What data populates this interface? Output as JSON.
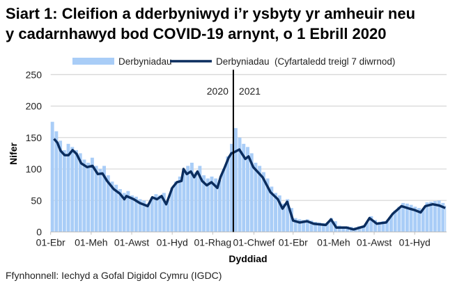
{
  "chart_data": {
    "type": "bar+line",
    "title": [
      "Siart 1: Cleifion a dderbyniwyd i’r ysbyty yr amheuir neu",
      "y cadarnhawyd bod COVID-19 arnynt, o 1 Ebrill 2020"
    ],
    "xlabel": "Dyddiad",
    "ylabel": "Nifer",
    "ylim": [
      0,
      250
    ],
    "yticks": [
      0,
      50,
      100,
      150,
      200,
      250
    ],
    "xlim": [
      "2020-04-01",
      "2021-11-18"
    ],
    "xticks": [
      {
        "date": "2020-04-01",
        "label": "01-Ebr"
      },
      {
        "date": "2020-06-01",
        "label": "01-Meh"
      },
      {
        "date": "2020-08-01",
        "label": "01-Awst"
      },
      {
        "date": "2020-10-01",
        "label": "01-Hyd"
      },
      {
        "date": "2020-12-01",
        "label": "01-Rhag"
      },
      {
        "date": "2021-02-01",
        "label": "01-Chwef"
      },
      {
        "date": "2021-04-01",
        "label": "01-Ebr"
      },
      {
        "date": "2021-06-01",
        "label": "01-Meh"
      },
      {
        "date": "2021-08-01",
        "label": "01-Awst"
      },
      {
        "date": "2021-10-01",
        "label": "01-Hyd"
      }
    ],
    "grid": "horizontal",
    "legend_position": "top",
    "year_divider": {
      "date": "2021-01-01",
      "left_label": "2020",
      "right_label": "2021"
    },
    "series": [
      {
        "name": "Derbyniadau",
        "type": "bar",
        "color": "#a9cdf7",
        "points": [
          [
            "2020-04-01",
            175
          ],
          [
            "2020-04-07",
            160
          ],
          [
            "2020-04-13",
            145
          ],
          [
            "2020-04-19",
            130
          ],
          [
            "2020-04-25",
            140
          ],
          [
            "2020-05-01",
            135
          ],
          [
            "2020-05-07",
            130
          ],
          [
            "2020-05-13",
            125
          ],
          [
            "2020-05-19",
            115
          ],
          [
            "2020-05-25",
            110
          ],
          [
            "2020-05-31",
            118
          ],
          [
            "2020-06-06",
            105
          ],
          [
            "2020-06-12",
            100
          ],
          [
            "2020-06-18",
            105
          ],
          [
            "2020-06-24",
            90
          ],
          [
            "2020-06-30",
            80
          ],
          [
            "2020-07-06",
            75
          ],
          [
            "2020-07-12",
            68
          ],
          [
            "2020-07-18",
            62
          ],
          [
            "2020-07-24",
            65
          ],
          [
            "2020-07-30",
            58
          ],
          [
            "2020-08-05",
            56
          ],
          [
            "2020-08-11",
            52
          ],
          [
            "2020-08-17",
            50
          ],
          [
            "2020-08-23",
            45
          ],
          [
            "2020-08-29",
            55
          ],
          [
            "2020-09-04",
            60
          ],
          [
            "2020-09-10",
            58
          ],
          [
            "2020-09-16",
            62
          ],
          [
            "2020-09-22",
            50
          ],
          [
            "2020-09-28",
            70
          ],
          [
            "2020-10-04",
            80
          ],
          [
            "2020-10-10",
            88
          ],
          [
            "2020-10-16",
            95
          ],
          [
            "2020-10-22",
            105
          ],
          [
            "2020-10-28",
            110
          ],
          [
            "2020-11-03",
            95
          ],
          [
            "2020-11-09",
            105
          ],
          [
            "2020-11-15",
            90
          ],
          [
            "2020-11-21",
            85
          ],
          [
            "2020-11-27",
            88
          ],
          [
            "2020-12-03",
            85
          ],
          [
            "2020-12-09",
            82
          ],
          [
            "2020-12-15",
            100
          ],
          [
            "2020-12-21",
            120
          ],
          [
            "2020-12-27",
            140
          ],
          [
            "2021-01-02",
            165
          ],
          [
            "2021-01-08",
            150
          ],
          [
            "2021-01-14",
            140
          ],
          [
            "2021-01-20",
            135
          ],
          [
            "2021-01-26",
            125
          ],
          [
            "2021-02-01",
            110
          ],
          [
            "2021-02-07",
            105
          ],
          [
            "2021-02-13",
            95
          ],
          [
            "2021-02-19",
            85
          ],
          [
            "2021-02-25",
            72
          ],
          [
            "2021-03-03",
            62
          ],
          [
            "2021-03-09",
            58
          ],
          [
            "2021-03-15",
            45
          ],
          [
            "2021-03-21",
            52
          ],
          [
            "2021-03-27",
            38
          ],
          [
            "2021-04-02",
            22
          ],
          [
            "2021-04-08",
            20
          ],
          [
            "2021-04-14",
            19
          ],
          [
            "2021-04-20",
            20
          ],
          [
            "2021-04-26",
            18
          ],
          [
            "2021-05-02",
            16
          ],
          [
            "2021-05-08",
            15
          ],
          [
            "2021-05-14",
            14
          ],
          [
            "2021-05-20",
            14
          ],
          [
            "2021-05-26",
            22
          ],
          [
            "2021-06-01",
            17
          ],
          [
            "2021-06-07",
            10
          ],
          [
            "2021-06-13",
            9
          ],
          [
            "2021-06-19",
            9
          ],
          [
            "2021-06-25",
            8
          ],
          [
            "2021-07-01",
            7
          ],
          [
            "2021-07-07",
            9
          ],
          [
            "2021-07-13",
            10
          ],
          [
            "2021-07-19",
            15
          ],
          [
            "2021-07-25",
            25
          ],
          [
            "2021-07-31",
            19
          ],
          [
            "2021-08-06",
            16
          ],
          [
            "2021-08-12",
            17
          ],
          [
            "2021-08-18",
            18
          ],
          [
            "2021-08-24",
            25
          ],
          [
            "2021-08-30",
            34
          ],
          [
            "2021-09-05",
            40
          ],
          [
            "2021-09-11",
            46
          ],
          [
            "2021-09-17",
            45
          ],
          [
            "2021-09-23",
            43
          ],
          [
            "2021-09-29",
            40
          ],
          [
            "2021-10-05",
            38
          ],
          [
            "2021-10-11",
            37
          ],
          [
            "2021-10-17",
            47
          ],
          [
            "2021-10-23",
            48
          ],
          [
            "2021-10-29",
            49
          ],
          [
            "2021-11-04",
            50
          ],
          [
            "2021-11-10",
            46
          ],
          [
            "2021-11-16",
            42
          ]
        ]
      },
      {
        "name": "Derbyniadau  (Cyfartaledd treigl 7 diwrnod)",
        "type": "line",
        "color": "#0b2d5e",
        "points": [
          [
            "2020-04-06",
            148
          ],
          [
            "2020-04-11",
            142
          ],
          [
            "2020-04-16",
            129
          ],
          [
            "2020-04-22",
            122
          ],
          [
            "2020-04-28",
            122
          ],
          [
            "2020-05-04",
            130
          ],
          [
            "2020-05-10",
            124
          ],
          [
            "2020-05-17",
            109
          ],
          [
            "2020-05-26",
            103
          ],
          [
            "2020-06-03",
            105
          ],
          [
            "2020-06-11",
            92
          ],
          [
            "2020-06-18",
            93
          ],
          [
            "2020-06-25",
            81
          ],
          [
            "2020-07-05",
            68
          ],
          [
            "2020-07-14",
            61
          ],
          [
            "2020-07-21",
            52
          ],
          [
            "2020-07-24",
            57
          ],
          [
            "2020-08-04",
            52
          ],
          [
            "2020-08-13",
            46
          ],
          [
            "2020-08-25",
            41
          ],
          [
            "2020-09-01",
            55
          ],
          [
            "2020-09-08",
            52
          ],
          [
            "2020-09-15",
            57
          ],
          [
            "2020-09-22",
            44
          ],
          [
            "2020-10-01",
            70
          ],
          [
            "2020-10-08",
            79
          ],
          [
            "2020-10-15",
            81
          ],
          [
            "2020-10-18",
            100
          ],
          [
            "2020-10-23",
            92
          ],
          [
            "2020-10-29",
            96
          ],
          [
            "2020-11-03",
            87
          ],
          [
            "2020-11-08",
            96
          ],
          [
            "2020-11-15",
            81
          ],
          [
            "2020-11-22",
            74
          ],
          [
            "2020-11-29",
            79
          ],
          [
            "2020-12-08",
            70
          ],
          [
            "2020-12-13",
            88
          ],
          [
            "2020-12-18",
            100
          ],
          [
            "2020-12-25",
            118
          ],
          [
            "2020-12-29",
            125
          ],
          [
            "2021-01-01",
            126
          ],
          [
            "2021-01-10",
            131
          ],
          [
            "2021-01-19",
            116
          ],
          [
            "2021-01-24",
            120
          ],
          [
            "2021-01-31",
            103
          ],
          [
            "2021-02-14",
            87
          ],
          [
            "2021-02-26",
            63
          ],
          [
            "2021-03-09",
            52
          ],
          [
            "2021-03-16",
            37
          ],
          [
            "2021-03-23",
            48
          ],
          [
            "2021-04-01",
            18
          ],
          [
            "2021-04-11",
            15
          ],
          [
            "2021-04-22",
            17
          ],
          [
            "2021-05-02",
            13
          ],
          [
            "2021-05-20",
            11
          ],
          [
            "2021-05-28",
            20
          ],
          [
            "2021-06-05",
            7
          ],
          [
            "2021-06-20",
            7
          ],
          [
            "2021-07-01",
            4
          ],
          [
            "2021-07-17",
            9
          ],
          [
            "2021-07-25",
            22
          ],
          [
            "2021-08-05",
            13
          ],
          [
            "2021-08-19",
            15
          ],
          [
            "2021-08-29",
            29
          ],
          [
            "2021-09-11",
            41
          ],
          [
            "2021-09-23",
            37
          ],
          [
            "2021-09-30",
            35
          ],
          [
            "2021-10-10",
            31
          ],
          [
            "2021-10-17",
            41
          ],
          [
            "2021-10-28",
            44
          ],
          [
            "2021-11-07",
            42
          ],
          [
            "2021-11-16",
            38
          ]
        ]
      }
    ]
  },
  "source": "Ffynhonnell: Iechyd a Gofal Digidol Cymru (IGDC)"
}
